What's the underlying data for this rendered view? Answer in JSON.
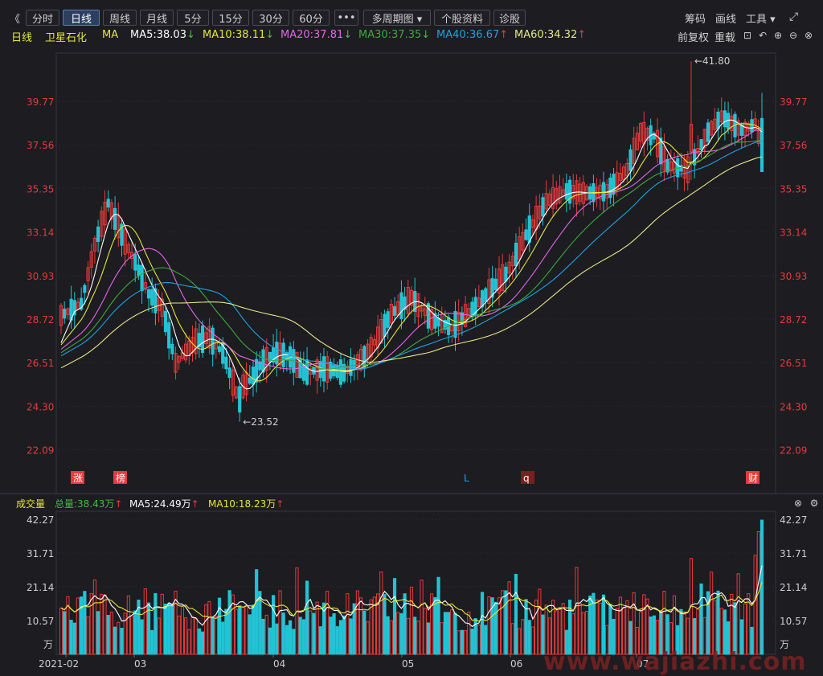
{
  "toolbar": {
    "back_label": "《",
    "buttons": [
      "分时",
      "日线",
      "周线",
      "月线",
      "5分",
      "15分",
      "30分",
      "60分",
      "•••",
      "多周期图 ▾",
      "个股资料",
      "诊股"
    ],
    "active": "日线",
    "right": [
      "筹码",
      "画线",
      "工具 ▾",
      "⤢"
    ]
  },
  "legend": {
    "period": "日线",
    "stock": "卫星石化",
    "ma": "MA",
    "ma5": "MA5:38.03",
    "ma10": "MA10:38.11",
    "ma20": "MA20:37.81",
    "ma30": "MA30:37.35",
    "ma40": "MA40:36.67",
    "ma60": "MA60:34.32",
    "ma5_arrow": "↓",
    "ma10_arrow": "↓",
    "ma20_arrow": "↓",
    "ma30_arrow": "↓",
    "ma40_arrow": "↑",
    "ma60_arrow": "↑",
    "fuquan": "前复权",
    "reload": "重载"
  },
  "volume_legend": {
    "title": "成交量",
    "total": "总量:38.43万",
    "ma5": "MA5:24.49万",
    "ma10": "MA10:18.23万",
    "arrow": "↑"
  },
  "colors": {
    "up": "#e83a3a",
    "down": "#22c3d4",
    "ma5": "#ffffff",
    "ma10": "#e6e63c",
    "ma20": "#e467e6",
    "ma30": "#3fa73f",
    "ma40": "#1fa3e0",
    "ma60": "#e6e68c",
    "axis": "#e83a3a",
    "grid": "#3b3b44"
  },
  "chart_data": {
    "type": "candlestick",
    "y_ticks": [
      "39.77",
      "37.56",
      "35.35",
      "33.14",
      "30.93",
      "28.72",
      "26.51",
      "24.30",
      "22.09"
    ],
    "vol_ticks": [
      "42.27",
      "31.71",
      "21.14",
      "10.57",
      "万"
    ],
    "x_labels": [
      "2021-02",
      "03",
      "04",
      "05",
      "06",
      "07"
    ],
    "high_marker": "41.80",
    "low_marker": "23.52",
    "event_tags": [
      "涨",
      "榜",
      "L",
      "q",
      "财"
    ]
  },
  "watermark": "www.wajiazhi.com"
}
